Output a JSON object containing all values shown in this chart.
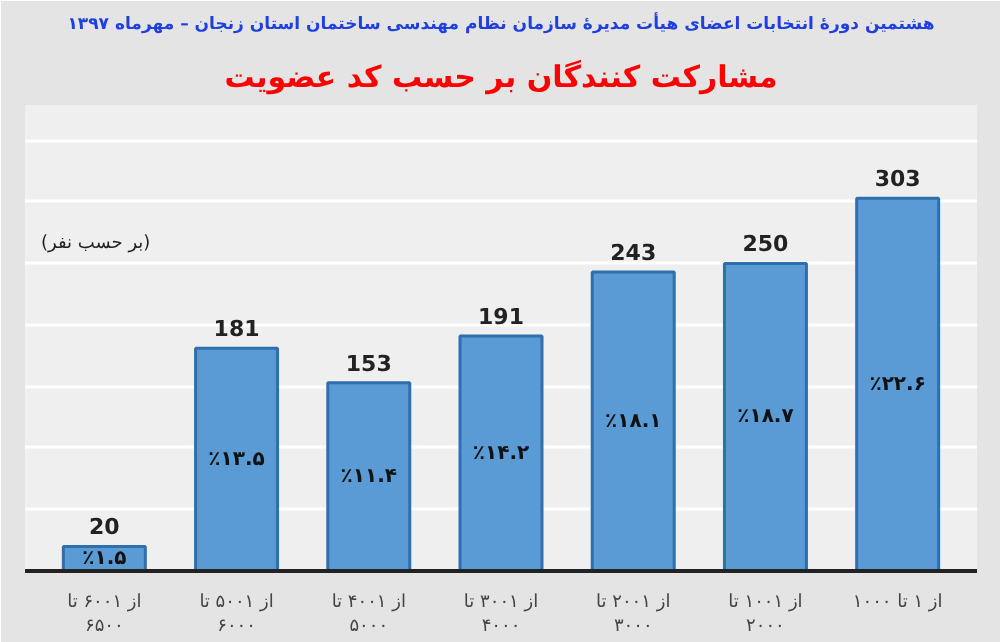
{
  "chart_data": {
    "type": "bar",
    "title": "هشتمین دورهٔ انتخابات اعضای هیأت مدیرهٔ سازمان نظام مهندسی ساختمان استان زنجان – مهرماه ۱۳۹۷",
    "subtitle": "مشارکت کنندگان بر حسب کد عضویت",
    "ylabel": "(بر حسب نفر)",
    "categories": [
      "از ۶۰۰۱ تا\n۶۵۰۰",
      "از ۵۰۰۱ تا\n۶۰۰۰",
      "از ۴۰۰۱ تا\n۵۰۰۰",
      "از ۳۰۰۱ تا\n۴۰۰۰",
      "از ۲۰۰۱ تا\n۳۰۰۰",
      "از ۱۰۰۱ تا\n۲۰۰۰",
      "از ۱ تا ۱۰۰۰"
    ],
    "values": [
      20,
      181,
      153,
      191,
      243,
      250,
      303
    ],
    "color": "#5b9bd5",
    "data_labels": true,
    "grid": "y",
    "tick_labels": "x",
    "annotations": [
      "٪۱.۵",
      "٪۱۳.۵",
      "٪۱۱.۴",
      "٪۱۴.۲",
      "٪۱۸.۱",
      "٪۱۸.۷",
      "٪۲۲.۶"
    ]
  }
}
